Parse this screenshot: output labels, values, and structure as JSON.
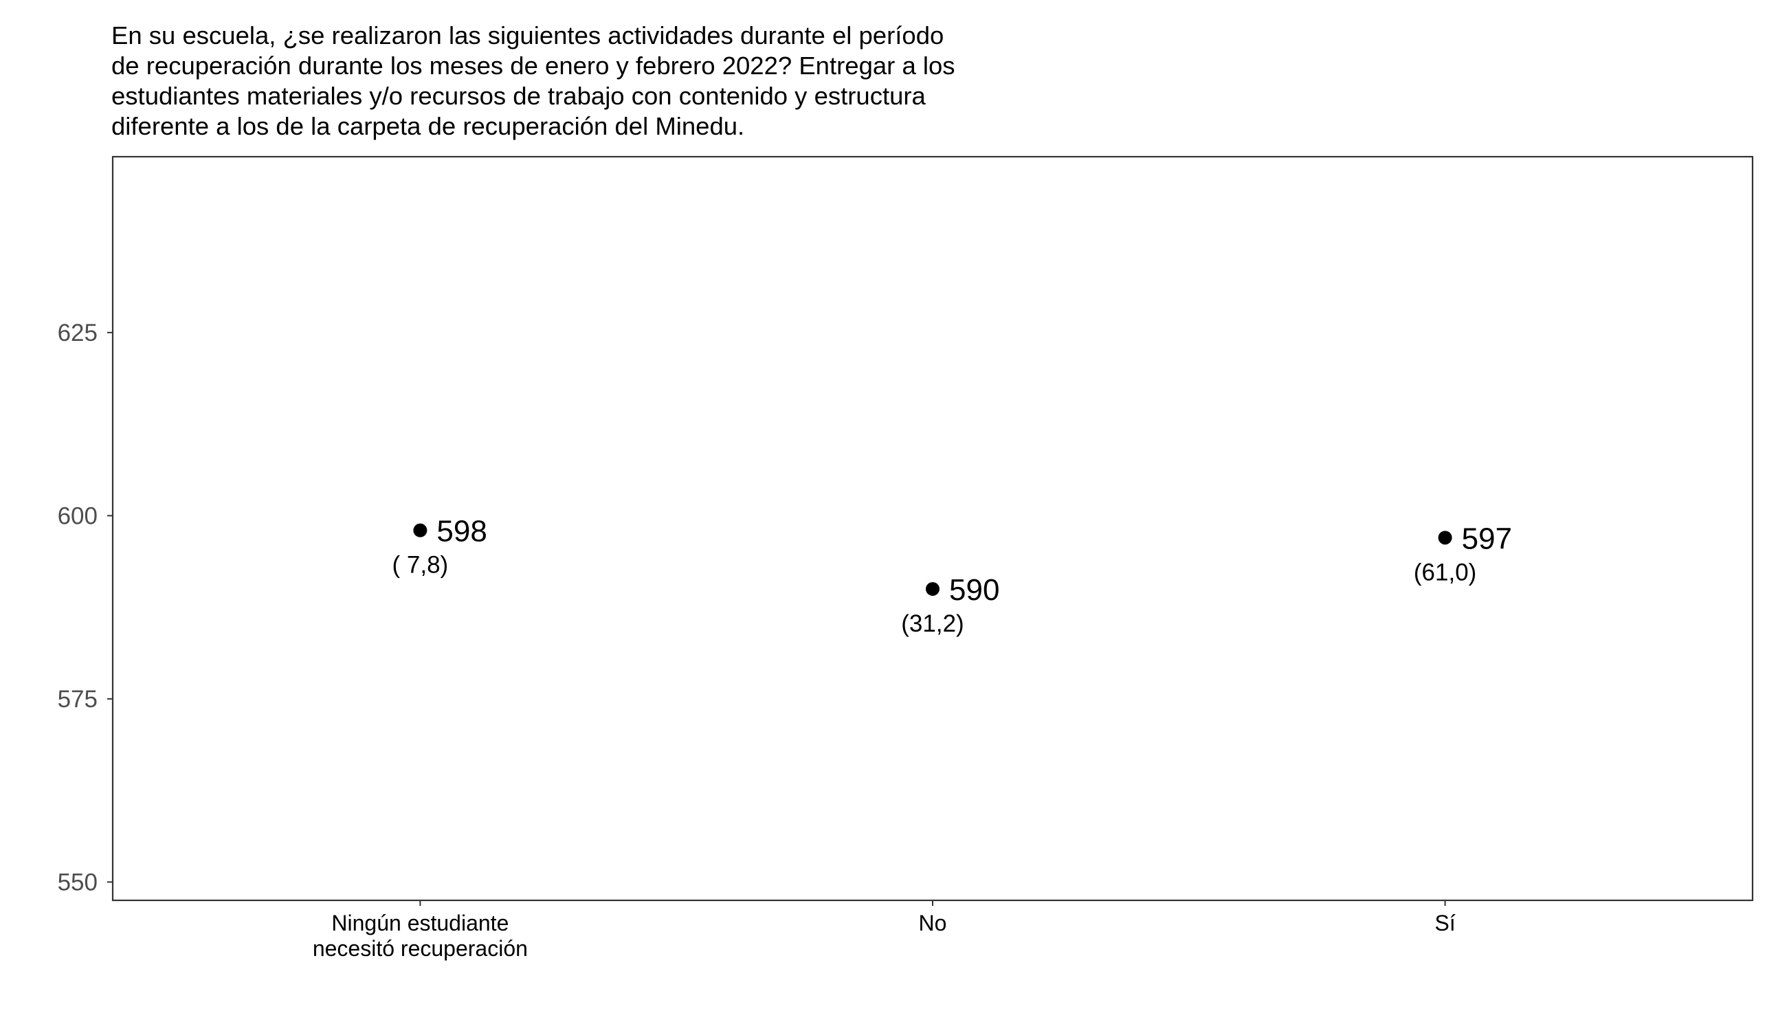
{
  "chart_data": {
    "type": "scatter",
    "title_lines": [
      "En su escuela, ¿se realizaron las siguientes actividades durante el período",
      "de recuperación durante los meses de enero y febrero 2022? Entregar a los",
      "estudiantes materiales y/o recursos de trabajo con contenido y estructura",
      "diferente a los de la carpeta de recuperación del Minedu."
    ],
    "categories": [
      [
        "Ningún estudiante",
        "necesitó recuperación"
      ],
      [
        "No"
      ],
      [
        "Sí"
      ]
    ],
    "points": [
      {
        "value": 598,
        "label": "598",
        "sublabel": "( 7,8)"
      },
      {
        "value": 590,
        "label": "590",
        "sublabel": "(31,2)"
      },
      {
        "value": 597,
        "label": "597",
        "sublabel": "(61,0)"
      }
    ],
    "y_ticks": [
      550,
      575,
      600,
      625
    ],
    "ylim": [
      547.5,
      649
    ],
    "xlabel": "",
    "ylabel": "",
    "grid": false,
    "legend": "none",
    "point_color": "#000000",
    "axis_tick_color": "#4d4d4d"
  }
}
